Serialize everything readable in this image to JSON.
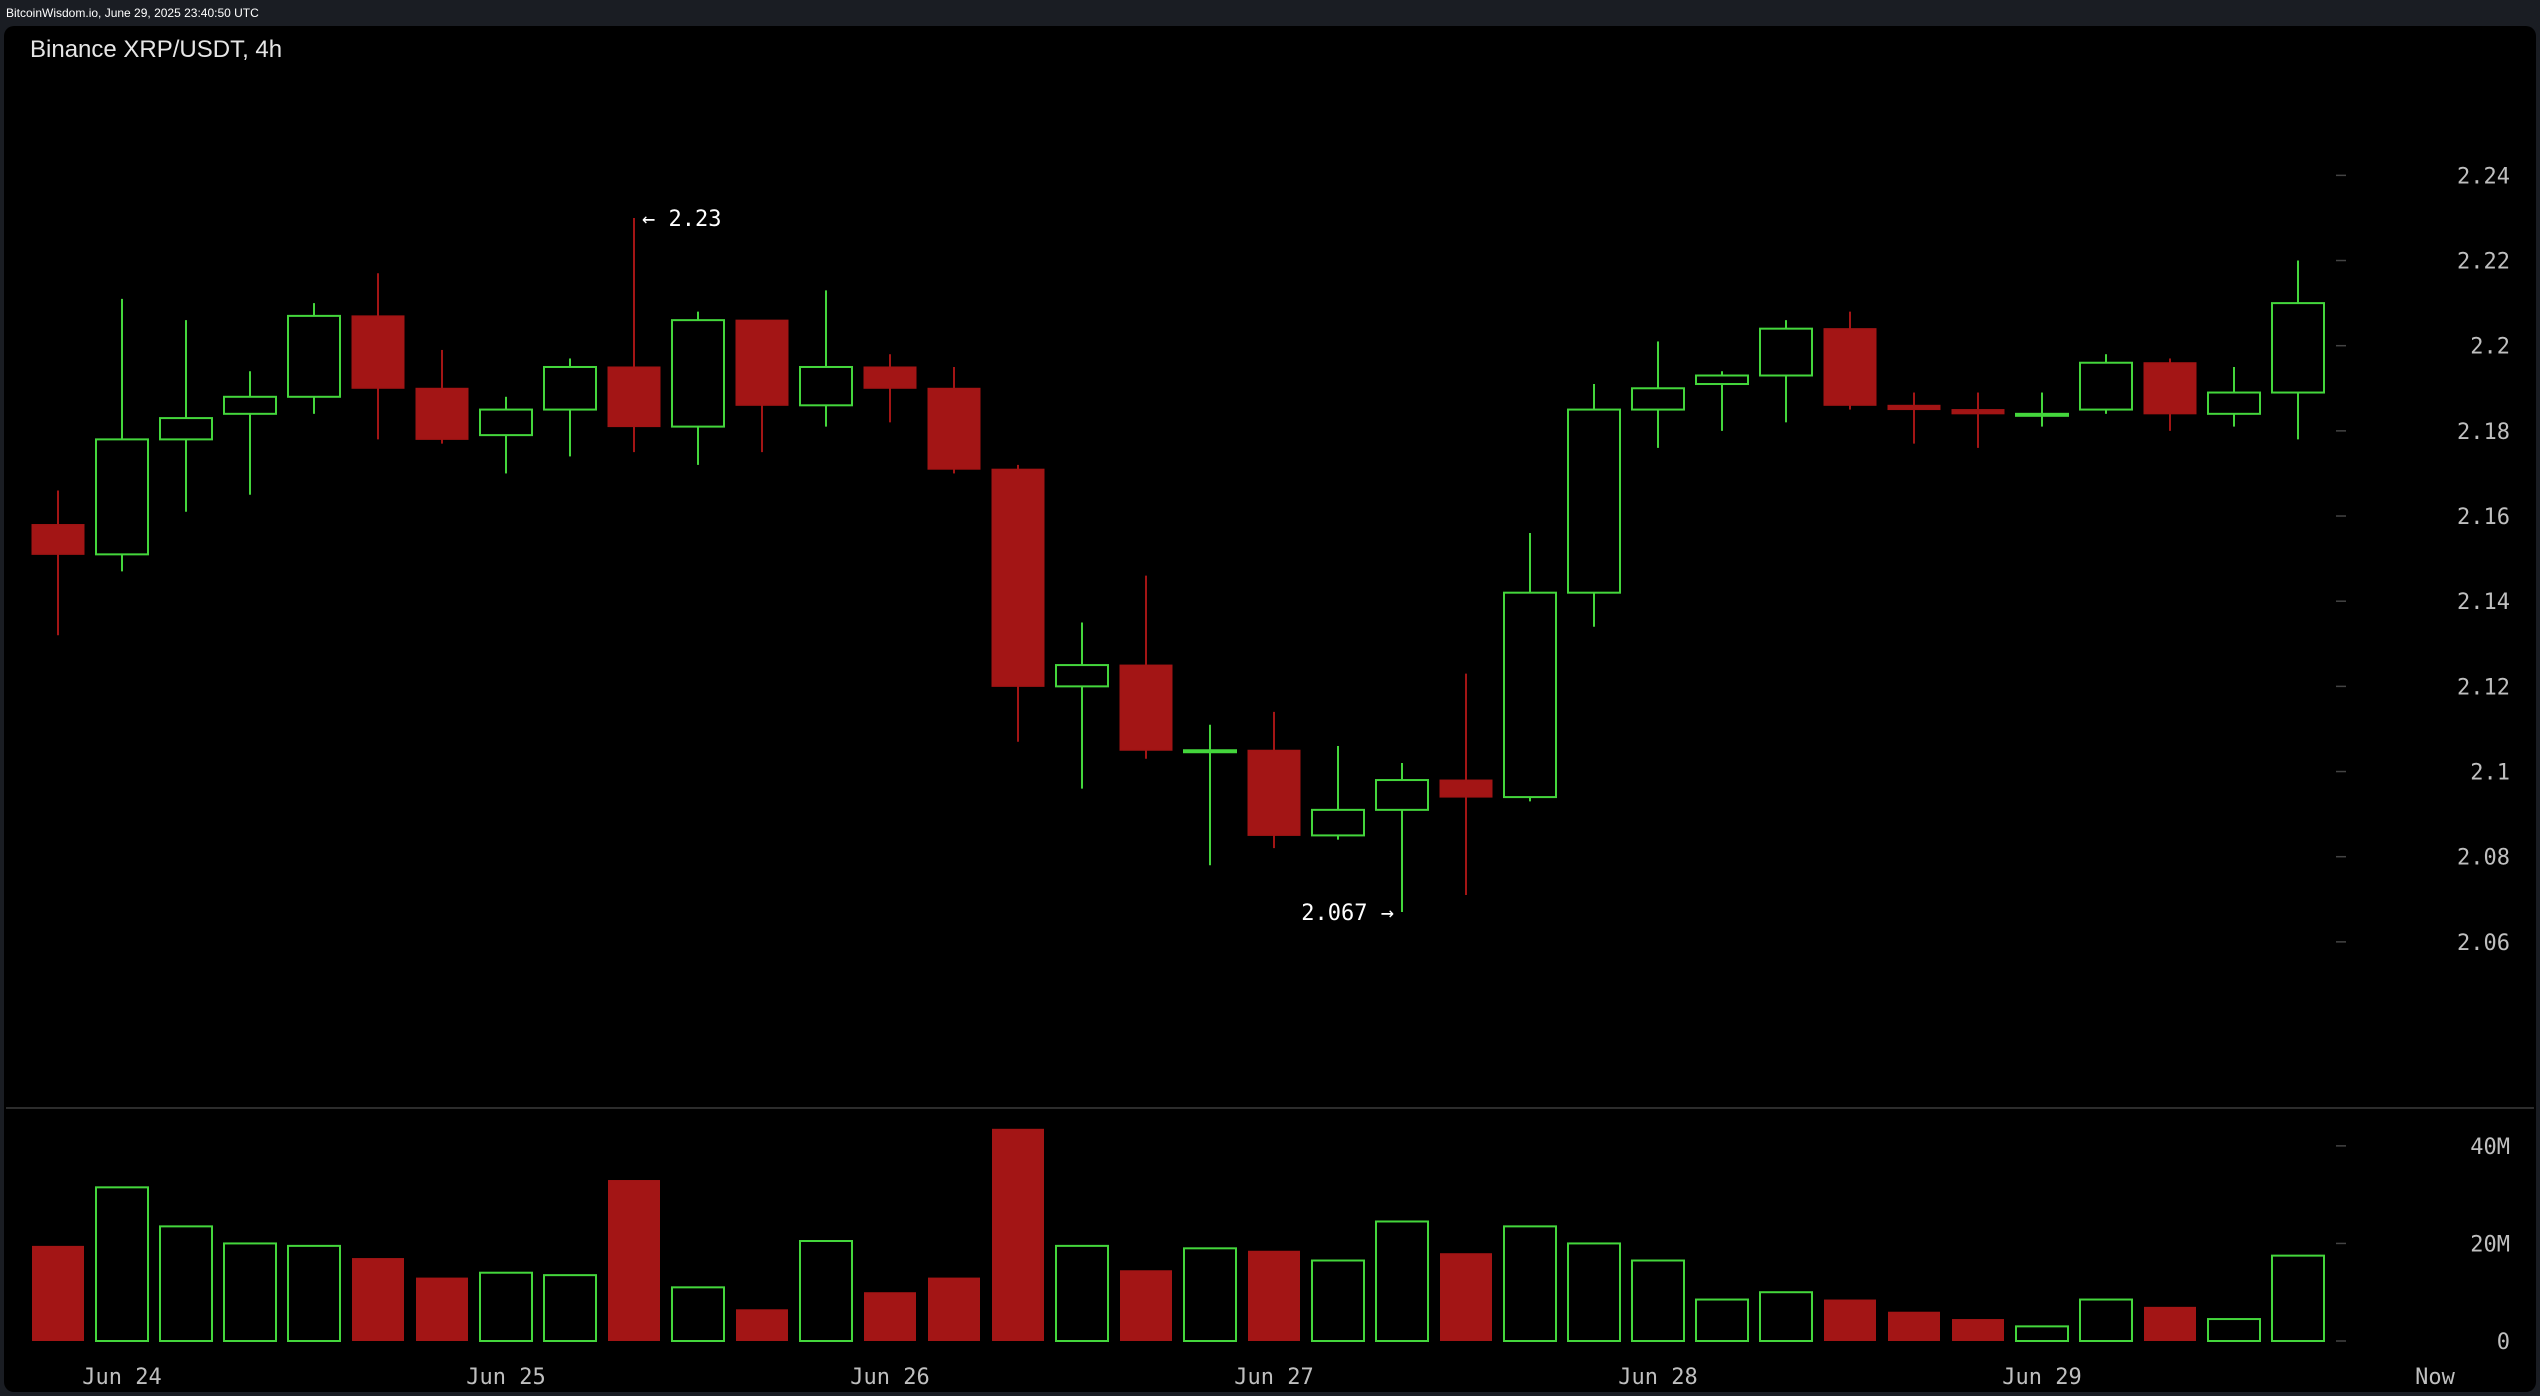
{
  "header": {
    "source_text": "BitcoinWisdom.io, June 29, 2025 23:40:50 UTC"
  },
  "chart_title": "Binance XRP/USDT, 4h",
  "colors": {
    "up": "#44d63c",
    "down": "#a31515",
    "background": "#000000",
    "axis_text": "#bfbfbf",
    "grid_tick": "#444444"
  },
  "chart_data": [
    {
      "type": "candlestick",
      "title": "Binance XRP/USDT, 4h",
      "yticks": [
        "2.06",
        "2.08",
        "2.1",
        "2.12",
        "2.14",
        "2.16",
        "2.18",
        "2.2",
        "2.22",
        "2.24"
      ],
      "ylim": [
        2.044,
        2.253
      ],
      "xticks": [
        "Jun 24",
        "Jun 25",
        "Jun 26",
        "Jun 27",
        "Jun 28",
        "Jun 29",
        "Now"
      ],
      "annotations": [
        {
          "text": "← 2.23",
          "value": 2.23
        },
        {
          "text": "2.067 →",
          "value": 2.067
        }
      ],
      "candles": [
        {
          "o": 2.158,
          "h": 2.166,
          "l": 2.132,
          "c": 2.151
        },
        {
          "o": 2.151,
          "h": 2.211,
          "l": 2.147,
          "c": 2.178
        },
        {
          "o": 2.178,
          "h": 2.206,
          "l": 2.161,
          "c": 2.183
        },
        {
          "o": 2.184,
          "h": 2.194,
          "l": 2.165,
          "c": 2.188
        },
        {
          "o": 2.188,
          "h": 2.21,
          "l": 2.184,
          "c": 2.207
        },
        {
          "o": 2.207,
          "h": 2.217,
          "l": 2.178,
          "c": 2.19
        },
        {
          "o": 2.19,
          "h": 2.199,
          "l": 2.177,
          "c": 2.178
        },
        {
          "o": 2.179,
          "h": 2.188,
          "l": 2.17,
          "c": 2.185
        },
        {
          "o": 2.185,
          "h": 2.197,
          "l": 2.174,
          "c": 2.195
        },
        {
          "o": 2.195,
          "h": 2.23,
          "l": 2.175,
          "c": 2.181
        },
        {
          "o": 2.181,
          "h": 2.208,
          "l": 2.172,
          "c": 2.206
        },
        {
          "o": 2.206,
          "h": 2.206,
          "l": 2.175,
          "c": 2.186
        },
        {
          "o": 2.186,
          "h": 2.213,
          "l": 2.181,
          "c": 2.195
        },
        {
          "o": 2.195,
          "h": 2.198,
          "l": 2.182,
          "c": 2.19
        },
        {
          "o": 2.19,
          "h": 2.195,
          "l": 2.17,
          "c": 2.171
        },
        {
          "o": 2.171,
          "h": 2.172,
          "l": 2.107,
          "c": 2.12
        },
        {
          "o": 2.12,
          "h": 2.135,
          "l": 2.096,
          "c": 2.125
        },
        {
          "o": 2.125,
          "h": 2.146,
          "l": 2.103,
          "c": 2.105
        },
        {
          "o": 2.105,
          "h": 2.111,
          "l": 2.078,
          "c": 2.105
        },
        {
          "o": 2.105,
          "h": 2.114,
          "l": 2.082,
          "c": 2.085
        },
        {
          "o": 2.085,
          "h": 2.106,
          "l": 2.084,
          "c": 2.091
        },
        {
          "o": 2.091,
          "h": 2.102,
          "l": 2.067,
          "c": 2.098
        },
        {
          "o": 2.098,
          "h": 2.123,
          "l": 2.071,
          "c": 2.094
        },
        {
          "o": 2.094,
          "h": 2.156,
          "l": 2.093,
          "c": 2.142
        },
        {
          "o": 2.142,
          "h": 2.191,
          "l": 2.134,
          "c": 2.185
        },
        {
          "o": 2.185,
          "h": 2.201,
          "l": 2.176,
          "c": 2.19
        },
        {
          "o": 2.191,
          "h": 2.194,
          "l": 2.18,
          "c": 2.193
        },
        {
          "o": 2.193,
          "h": 2.206,
          "l": 2.182,
          "c": 2.204
        },
        {
          "o": 2.204,
          "h": 2.208,
          "l": 2.185,
          "c": 2.186
        },
        {
          "o": 2.186,
          "h": 2.189,
          "l": 2.177,
          "c": 2.185
        },
        {
          "o": 2.185,
          "h": 2.189,
          "l": 2.176,
          "c": 2.184
        },
        {
          "o": 2.184,
          "h": 2.189,
          "l": 2.181,
          "c": 2.184
        },
        {
          "o": 2.185,
          "h": 2.198,
          "l": 2.184,
          "c": 2.196
        },
        {
          "o": 2.196,
          "h": 2.197,
          "l": 2.18,
          "c": 2.184
        },
        {
          "o": 2.184,
          "h": 2.195,
          "l": 2.181,
          "c": 2.189
        },
        {
          "o": 2.189,
          "h": 2.22,
          "l": 2.178,
          "c": 2.21
        }
      ],
      "volume": {
        "yticks": [
          "0",
          "20M",
          "40M"
        ],
        "ylim": [
          0,
          41
        ],
        "unit": "M",
        "values": [
          19.5,
          31.5,
          23.5,
          20,
          19.5,
          17,
          13,
          14,
          13.5,
          33,
          11,
          6.5,
          20.5,
          10,
          13,
          43.5,
          19.5,
          14.5,
          19,
          18.5,
          16.5,
          24.5,
          18,
          23.5,
          20,
          16.5,
          8.5,
          10,
          8.5,
          6,
          4.5,
          3,
          8.5,
          7,
          4.5,
          17.5
        ]
      }
    }
  ]
}
